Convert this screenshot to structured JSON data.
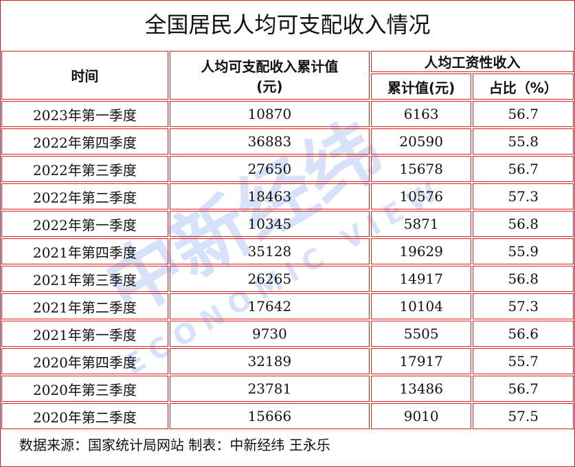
{
  "title": "全国居民人均可支配收入情况",
  "headers": {
    "time": "时间",
    "disposable": "人均可支配收入累计值",
    "disposable_unit": "(元)",
    "wage": "人均工资性收入",
    "wage_cum": "累计值(元)",
    "wage_share": "占比（%）"
  },
  "rows": [
    [
      "2023年第一季度",
      "10870",
      "6163",
      "56.7"
    ],
    [
      "2022年第四季度",
      "36883",
      "20590",
      "55.8"
    ],
    [
      "2022年第三季度",
      "27650",
      "15678",
      "56.7"
    ],
    [
      "2022年第二季度",
      "18463",
      "10576",
      "57.3"
    ],
    [
      "2022年第一季度",
      "10345",
      "5871",
      "56.8"
    ],
    [
      "2021年第四季度",
      "35128",
      "19629",
      "55.9"
    ],
    [
      "2021年第三季度",
      "26265",
      "14917",
      "56.8"
    ],
    [
      "2021年第二季度",
      "17642",
      "10104",
      "57.3"
    ],
    [
      "2021年第一季度",
      "9730",
      "5505",
      "56.6"
    ],
    [
      "2020年第四季度",
      "32189",
      "17917",
      "55.7"
    ],
    [
      "2020年第三季度",
      "23781",
      "13486",
      "56.7"
    ],
    [
      "2020年第二季度",
      "15666",
      "9010",
      "57.5"
    ]
  ],
  "footer": "数据来源：国家统计局网站  制表：中新经纬 王永乐",
  "watermark": {
    "cn": "中新经纬",
    "en": "ECONOMIC VIEW"
  },
  "colors": {
    "border": "#d81e1e"
  }
}
